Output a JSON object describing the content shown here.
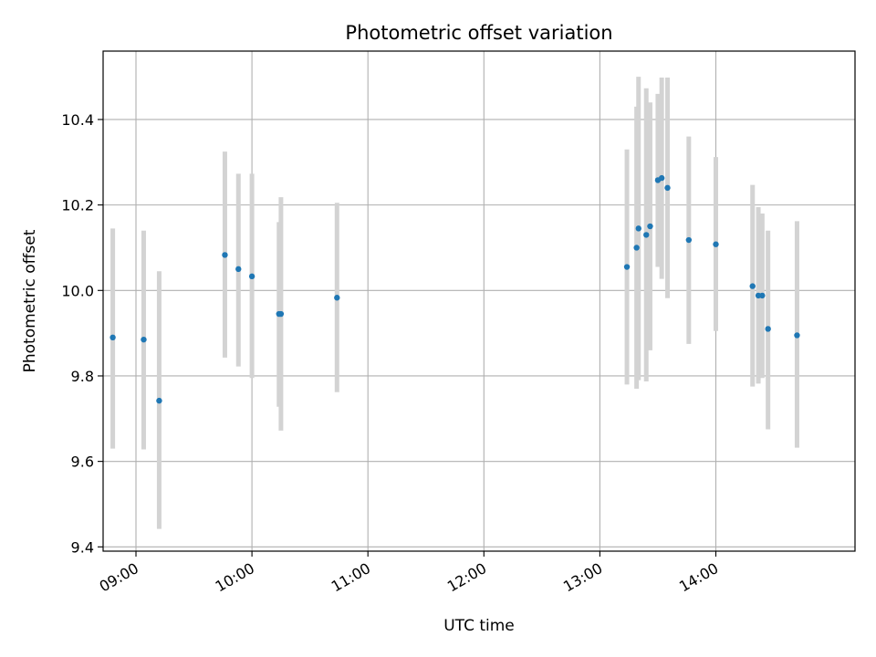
{
  "chart_data": {
    "type": "scatter",
    "title": "Photometric offset variation",
    "xlabel": "UTC time",
    "ylabel": "Photometric offset",
    "x_ticks": [
      "09:00",
      "10:00",
      "11:00",
      "12:00",
      "13:00",
      "14:00"
    ],
    "y_ticks": [
      "9.4",
      "9.6",
      "9.8",
      "10.0",
      "10.2",
      "10.4"
    ],
    "xlim": [
      "08:43",
      "15:12"
    ],
    "ylim": [
      9.39,
      10.56
    ],
    "grid": true,
    "series": [
      {
        "marker_color": "#1f77b4",
        "errorbar_color": "#d3d3d3",
        "points": [
          {
            "x": "08:48",
            "y": 9.89,
            "ylow": 9.63,
            "yhigh": 10.145
          },
          {
            "x": "09:04",
            "y": 9.885,
            "ylow": 9.628,
            "yhigh": 10.14
          },
          {
            "x": "09:12",
            "y": 9.742,
            "ylow": 9.442,
            "yhigh": 10.045
          },
          {
            "x": "09:46",
            "y": 10.083,
            "ylow": 9.843,
            "yhigh": 10.325
          },
          {
            "x": "09:53",
            "y": 10.05,
            "ylow": 9.822,
            "yhigh": 10.273
          },
          {
            "x": "10:00",
            "y": 10.033,
            "ylow": 9.795,
            "yhigh": 10.273
          },
          {
            "x": "10:14",
            "y": 9.945,
            "ylow": 9.728,
            "yhigh": 10.16
          },
          {
            "x": "10:15",
            "y": 9.945,
            "ylow": 9.672,
            "yhigh": 10.218
          },
          {
            "x": "10:44",
            "y": 9.983,
            "ylow": 9.762,
            "yhigh": 10.205
          },
          {
            "x": "13:14",
            "y": 10.055,
            "ylow": 9.78,
            "yhigh": 10.33
          },
          {
            "x": "13:19",
            "y": 10.1,
            "ylow": 9.77,
            "yhigh": 10.43
          },
          {
            "x": "13:20",
            "y": 10.145,
            "ylow": 9.79,
            "yhigh": 10.5
          },
          {
            "x": "13:24",
            "y": 10.13,
            "ylow": 9.787,
            "yhigh": 10.473
          },
          {
            "x": "13:26",
            "y": 10.15,
            "ylow": 9.86,
            "yhigh": 10.44
          },
          {
            "x": "13:30",
            "y": 10.258,
            "ylow": 10.055,
            "yhigh": 10.46
          },
          {
            "x": "13:32",
            "y": 10.263,
            "ylow": 10.027,
            "yhigh": 10.498
          },
          {
            "x": "13:35",
            "y": 10.24,
            "ylow": 9.982,
            "yhigh": 10.498
          },
          {
            "x": "13:46",
            "y": 10.118,
            "ylow": 9.875,
            "yhigh": 10.36
          },
          {
            "x": "14:00",
            "y": 10.108,
            "ylow": 9.905,
            "yhigh": 10.312
          },
          {
            "x": "14:19",
            "y": 10.01,
            "ylow": 9.775,
            "yhigh": 10.247
          },
          {
            "x": "14:22",
            "y": 9.988,
            "ylow": 9.782,
            "yhigh": 10.195
          },
          {
            "x": "14:24",
            "y": 9.988,
            "ylow": 9.795,
            "yhigh": 10.18
          },
          {
            "x": "14:27",
            "y": 9.91,
            "ylow": 9.675,
            "yhigh": 10.14
          },
          {
            "x": "14:42",
            "y": 9.895,
            "ylow": 9.632,
            "yhigh": 10.162
          }
        ]
      }
    ]
  }
}
